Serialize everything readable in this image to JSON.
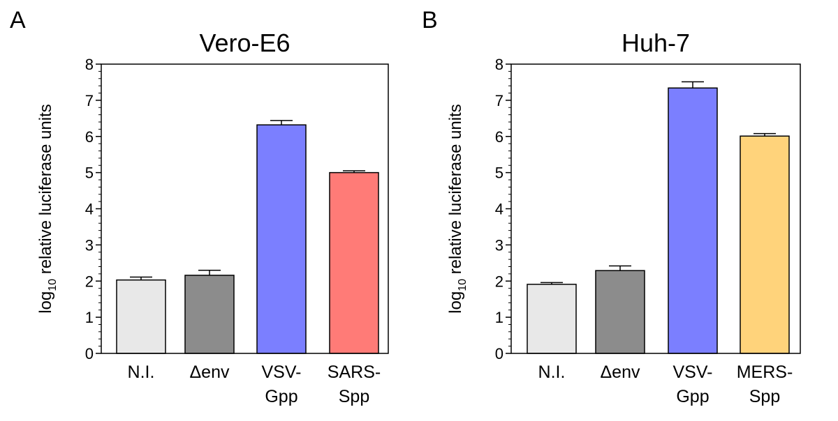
{
  "chart_data": [
    {
      "type": "bar",
      "panel": "A",
      "title": "Vero-E6",
      "ylabel_prefix": "log",
      "ylabel_subscript": "10",
      "ylabel_suffix": " relative luciferase units",
      "xlabel": "",
      "ylim": [
        0,
        8
      ],
      "yticks": [
        "0",
        "1",
        "2",
        "3",
        "4",
        "5",
        "6",
        "7",
        "8"
      ],
      "categories": [
        {
          "line1": "N.I.",
          "line2": ""
        },
        {
          "line1": "Δenv",
          "line2": ""
        },
        {
          "line1": "VSV-",
          "line2": "Gpp"
        },
        {
          "line1": "SARS-",
          "line2": "Spp"
        }
      ],
      "values": [
        2.03,
        2.16,
        6.32,
        5.0
      ],
      "errors": [
        0.08,
        0.14,
        0.12,
        0.05
      ],
      "colors": [
        "#e8e8e8",
        "#8c8c8c",
        "#7b7fff",
        "#ff7b77"
      ]
    },
    {
      "type": "bar",
      "panel": "B",
      "title": "Huh-7",
      "ylabel_prefix": "log",
      "ylabel_subscript": "10",
      "ylabel_suffix": " relative luciferase units",
      "xlabel": "",
      "ylim": [
        0,
        8
      ],
      "yticks": [
        "0",
        "1",
        "2",
        "3",
        "4",
        "5",
        "6",
        "7",
        "8"
      ],
      "categories": [
        {
          "line1": "N.I.",
          "line2": ""
        },
        {
          "line1": "Δenv",
          "line2": ""
        },
        {
          "line1": "VSV-",
          "line2": "Gpp"
        },
        {
          "line1": "MERS-",
          "line2": "Spp"
        }
      ],
      "values": [
        1.91,
        2.29,
        7.34,
        6.01
      ],
      "errors": [
        0.05,
        0.13,
        0.17,
        0.07
      ],
      "colors": [
        "#e8e8e8",
        "#8c8c8c",
        "#7b7fff",
        "#ffd37b"
      ]
    }
  ]
}
